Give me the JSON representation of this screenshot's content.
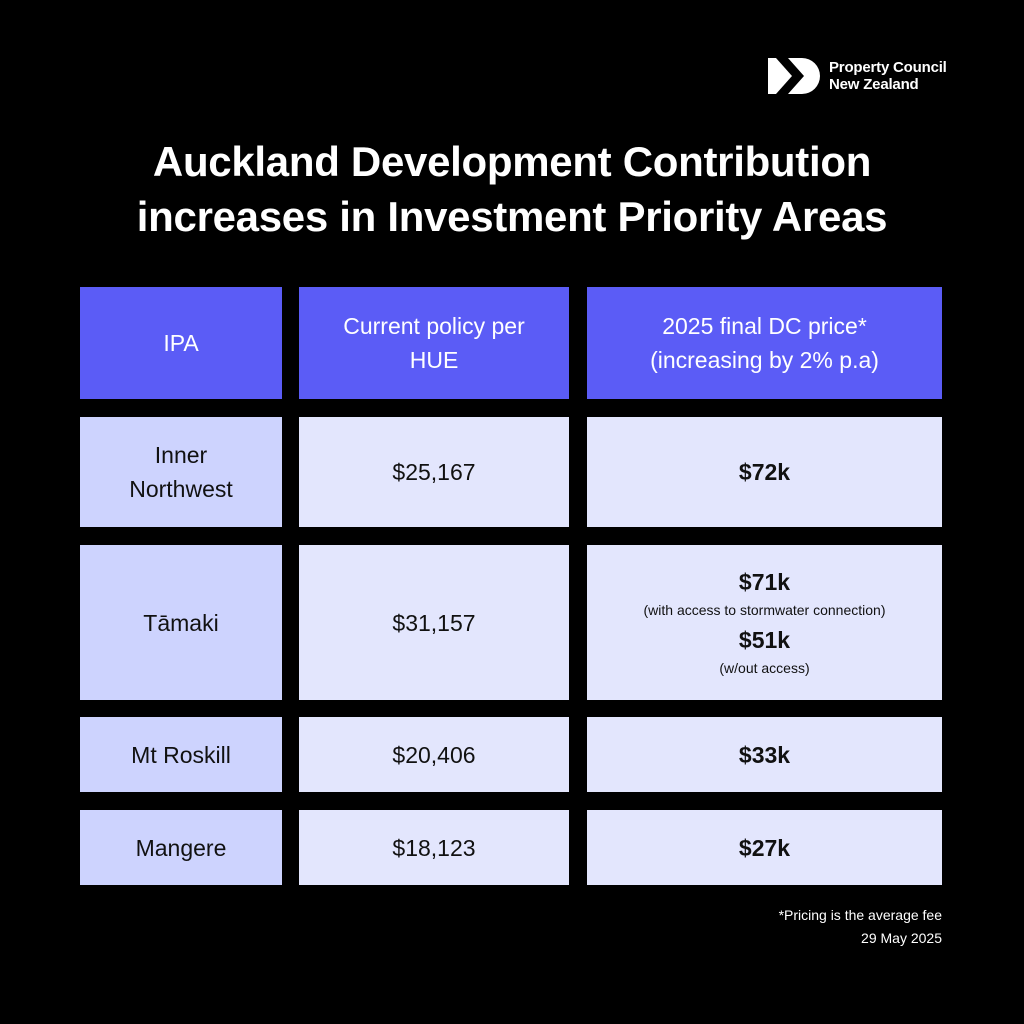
{
  "brand": {
    "name_line1": "Property Council",
    "name_line2": "New Zealand",
    "logo_icon": "property-council-logo-icon"
  },
  "title": {
    "line1": "Auckland Development Contribution",
    "line2": "increases in Investment Priority Areas"
  },
  "colors": {
    "background": "#000000",
    "header_fill": "#5b5cf6",
    "first_column_fill": "#cdd3fe",
    "cell_fill": "#e3e6fd"
  },
  "table": {
    "headers": {
      "ipa": "IPA",
      "current_line1": "Current policy per",
      "current_line2": "HUE",
      "final_line1": "2025 final DC price*",
      "final_line2": "(increasing by 2% p.a)"
    },
    "rows": [
      {
        "ipa_line1": "Inner",
        "ipa_line2": "Northwest",
        "current": "$25,167",
        "final": "$72k"
      },
      {
        "ipa": "Tāmaki",
        "current": "$31,157",
        "final_a": "$71k",
        "final_a_note": "(with access to stormwater connection)",
        "final_b": "$51k",
        "final_b_note": "(w/out access)"
      },
      {
        "ipa": "Mt Roskill",
        "current": "$20,406",
        "final": "$33k"
      },
      {
        "ipa": "Mangere",
        "current": "$18,123",
        "final": "$27k"
      }
    ]
  },
  "footnote": {
    "note": "*Pricing is the average fee",
    "date": "29 May 2025"
  }
}
